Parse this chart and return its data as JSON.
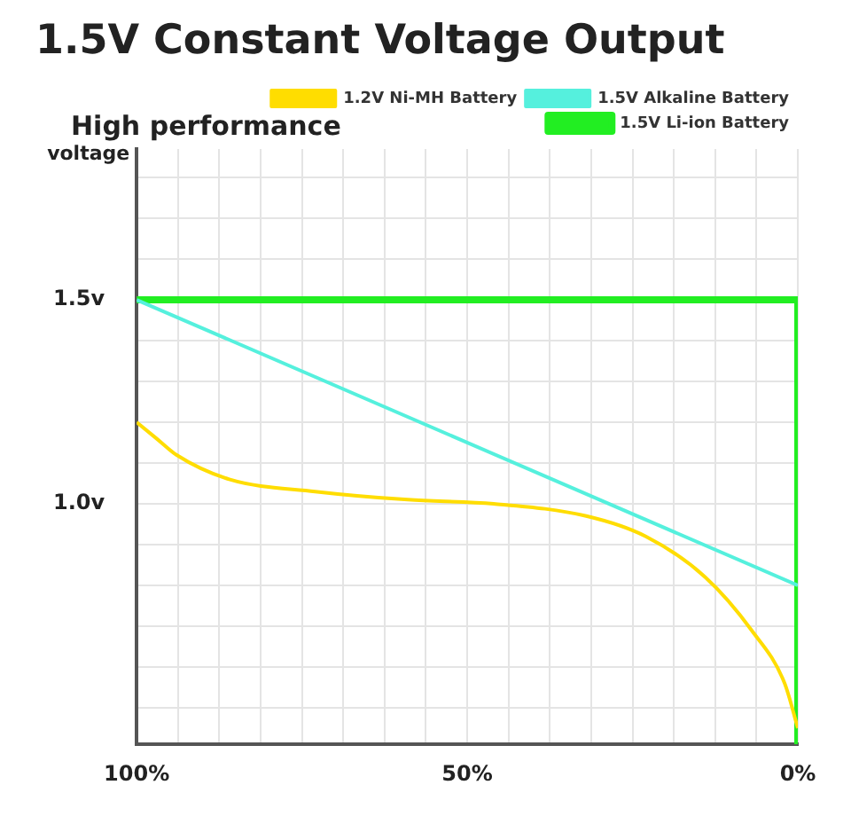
{
  "chart_data": {
    "type": "line",
    "title": "1.5V Constant Voltage Output",
    "subtitle": "High performance",
    "ylabel": "voltage",
    "xlim": [
      100,
      0
    ],
    "xticks": [
      {
        "value": 100,
        "label": "100%"
      },
      {
        "value": 93.75,
        "label": null
      },
      {
        "value": 87.5,
        "label": null
      },
      {
        "value": 81.25,
        "label": null
      },
      {
        "value": 75,
        "label": null
      },
      {
        "value": 68.75,
        "label": null
      },
      {
        "value": 62.5,
        "label": null
      },
      {
        "value": 56.25,
        "label": null
      },
      {
        "value": 50,
        "label": "50%"
      },
      {
        "value": 43.75,
        "label": null
      },
      {
        "value": 37.5,
        "label": null
      },
      {
        "value": 31.25,
        "label": null
      },
      {
        "value": 25,
        "label": null
      },
      {
        "value": 18.75,
        "label": null
      },
      {
        "value": 12.5,
        "label": null
      },
      {
        "value": 6.25,
        "label": null
      },
      {
        "value": 0,
        "label": "0%"
      }
    ],
    "ylim": [
      0.41,
      1.87
    ],
    "yticks": [
      {
        "value": 0.5,
        "label": null
      },
      {
        "value": 0.6,
        "label": null
      },
      {
        "value": 0.7,
        "label": null
      },
      {
        "value": 0.8,
        "label": null
      },
      {
        "value": 0.9,
        "label": null
      },
      {
        "value": 1.0,
        "label": "1.0v"
      },
      {
        "value": 1.1,
        "label": null
      },
      {
        "value": 1.2,
        "label": null
      },
      {
        "value": 1.3,
        "label": null
      },
      {
        "value": 1.4,
        "label": null
      },
      {
        "value": 1.5,
        "label": "1.5v"
      },
      {
        "value": 1.6,
        "label": null
      },
      {
        "value": 1.7,
        "label": null
      },
      {
        "value": 1.8,
        "label": null
      }
    ],
    "grid": true,
    "legend": "top right",
    "marker": "none",
    "line_style": "solid",
    "series": [
      {
        "name": "1.5V Li-ion Battery",
        "color": "#22ee22",
        "x": [
          100,
          0,
          0
        ],
        "values": [
          1.5,
          1.5,
          0.41
        ]
      },
      {
        "name": "1.2V Ni-MH Battery",
        "color": "#ffdd00",
        "x": [
          100,
          97,
          94,
          86,
          73,
          59,
          46,
          32,
          23,
          14,
          7,
          2,
          0
        ],
        "values": [
          1.2,
          1.16,
          1.12,
          1.06,
          1.03,
          1.01,
          1.0,
          0.97,
          0.92,
          0.82,
          0.69,
          0.56,
          0.45
        ]
      },
      {
        "name": "1.5V Alkaline Battery",
        "color": "#55f0dd",
        "x": [
          100,
          0
        ],
        "values": [
          1.5,
          0.8
        ]
      }
    ]
  }
}
